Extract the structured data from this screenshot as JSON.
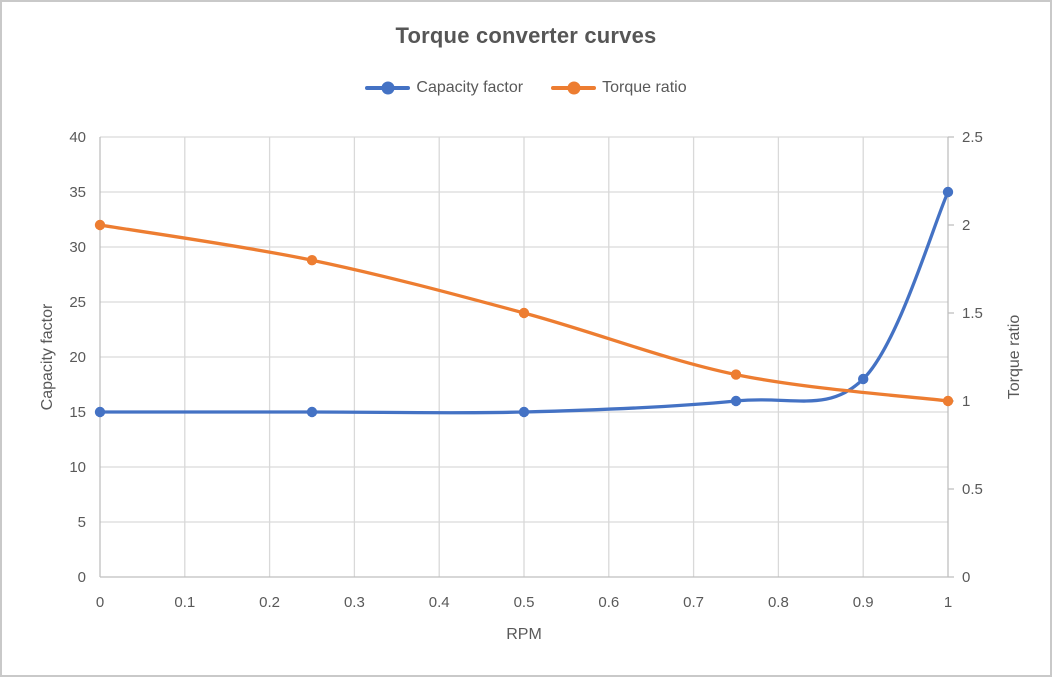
{
  "chart_data": {
    "type": "line",
    "title": "Torque converter curves",
    "legend_position": "top",
    "grid": true,
    "axes": {
      "x": {
        "label": "RPM",
        "min": 0,
        "max": 1,
        "ticks": [
          "0",
          "0.1",
          "0.2",
          "0.3",
          "0.4",
          "0.5",
          "0.6",
          "0.7",
          "0.8",
          "0.9",
          "1"
        ]
      },
      "left": {
        "label": "Capacity factor",
        "min": 0,
        "max": 40,
        "ticks": [
          "0",
          "5",
          "10",
          "15",
          "20",
          "25",
          "30",
          "35",
          "40"
        ]
      },
      "right": {
        "label": "Torque ratio",
        "min": 0,
        "max": 2.5,
        "ticks": [
          "0",
          "0.5",
          "1",
          "1.5",
          "2",
          "2.5"
        ]
      }
    },
    "series": [
      {
        "name": "Capacity factor",
        "color": "#4472C4",
        "axis": "left",
        "smooth": true,
        "points": [
          {
            "x": 0,
            "y": 15
          },
          {
            "x": 0.25,
            "y": 15
          },
          {
            "x": 0.5,
            "y": 15
          },
          {
            "x": 0.75,
            "y": 16
          },
          {
            "x": 0.9,
            "y": 18
          },
          {
            "x": 1,
            "y": 35
          }
        ]
      },
      {
        "name": "Torque ratio",
        "color": "#ED7D31",
        "axis": "right",
        "smooth": true,
        "points": [
          {
            "x": 0,
            "y": 2
          },
          {
            "x": 0.25,
            "y": 1.8
          },
          {
            "x": 0.5,
            "y": 1.5
          },
          {
            "x": 0.75,
            "y": 1.15
          },
          {
            "x": 1,
            "y": 1
          }
        ]
      }
    ]
  },
  "style": {
    "title_color": "#565656",
    "text_color": "#595959",
    "grid_color": "#D9D9D9",
    "axis_color": "#BFBFBF",
    "border_color": "#C9C9C9",
    "background": "#FFFFFF"
  }
}
